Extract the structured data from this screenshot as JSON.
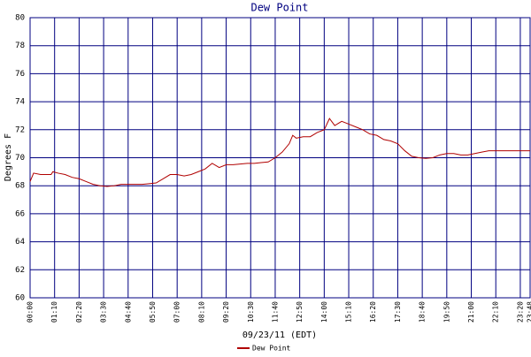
{
  "chart_data": {
    "type": "line",
    "title": "Dew Point",
    "x_label": "09/23/11 (EDT)",
    "y_label": "Degrees F",
    "x": [
      0,
      10,
      30,
      60,
      65,
      80,
      100,
      120,
      140,
      160,
      180,
      200,
      220,
      240,
      260,
      280,
      300,
      320,
      340,
      360,
      380,
      400,
      420,
      440,
      460,
      480,
      500,
      520,
      540,
      560,
      580,
      600,
      620,
      640,
      660,
      680,
      700,
      720,
      740,
      750,
      760,
      780,
      800,
      820,
      840,
      855,
      870,
      890,
      910,
      930,
      950,
      970,
      990,
      1010,
      1030,
      1050,
      1070,
      1090,
      1110,
      1130,
      1150,
      1170,
      1190,
      1210,
      1230,
      1250,
      1270,
      1290,
      1310,
      1330,
      1350,
      1370,
      1390,
      1428
    ],
    "series": [
      {
        "name": "Dew Point",
        "color": "#b00000",
        "values": [
          68.3,
          68.9,
          68.8,
          68.8,
          69.0,
          68.9,
          68.8,
          68.6,
          68.5,
          68.3,
          68.1,
          68.0,
          67.95,
          68.0,
          68.1,
          68.1,
          68.1,
          68.1,
          68.15,
          68.2,
          68.5,
          68.8,
          68.8,
          68.7,
          68.8,
          69.0,
          69.2,
          69.6,
          69.3,
          69.5,
          69.5,
          69.55,
          69.6,
          69.6,
          69.65,
          69.7,
          70.0,
          70.4,
          71.0,
          71.6,
          71.4,
          71.5,
          71.5,
          71.8,
          72.0,
          72.8,
          72.3,
          72.6,
          72.4,
          72.2,
          72.0,
          71.7,
          71.6,
          71.3,
          71.2,
          71.0,
          70.5,
          70.1,
          70.0,
          69.95,
          70.0,
          70.2,
          70.3,
          70.3,
          70.2,
          70.2,
          70.3,
          70.4,
          70.5,
          70.5,
          70.5,
          70.5,
          70.5,
          70.5
        ]
      }
    ],
    "xlim": [
      0,
      1428
    ],
    "xticks": [
      {
        "value": 0,
        "label": "00:00"
      },
      {
        "value": 70,
        "label": "01:10"
      },
      {
        "value": 140,
        "label": "02:20"
      },
      {
        "value": 210,
        "label": "03:30"
      },
      {
        "value": 280,
        "label": "04:40"
      },
      {
        "value": 350,
        "label": "05:50"
      },
      {
        "value": 420,
        "label": "07:00"
      },
      {
        "value": 490,
        "label": "08:10"
      },
      {
        "value": 560,
        "label": "09:20"
      },
      {
        "value": 630,
        "label": "10:30"
      },
      {
        "value": 700,
        "label": "11:40"
      },
      {
        "value": 770,
        "label": "12:50"
      },
      {
        "value": 840,
        "label": "14:00"
      },
      {
        "value": 910,
        "label": "15:10"
      },
      {
        "value": 980,
        "label": "16:20"
      },
      {
        "value": 1050,
        "label": "17:30"
      },
      {
        "value": 1120,
        "label": "18:40"
      },
      {
        "value": 1190,
        "label": "19:50"
      },
      {
        "value": 1260,
        "label": "21:00"
      },
      {
        "value": 1330,
        "label": "22:10"
      },
      {
        "value": 1400,
        "label": "23:20"
      },
      {
        "value": 1428,
        "label": "23:48"
      }
    ],
    "ylim": [
      60,
      80
    ],
    "yticks": [
      60,
      62,
      64,
      66,
      68,
      70,
      72,
      74,
      76,
      78,
      80
    ],
    "grid": true
  }
}
